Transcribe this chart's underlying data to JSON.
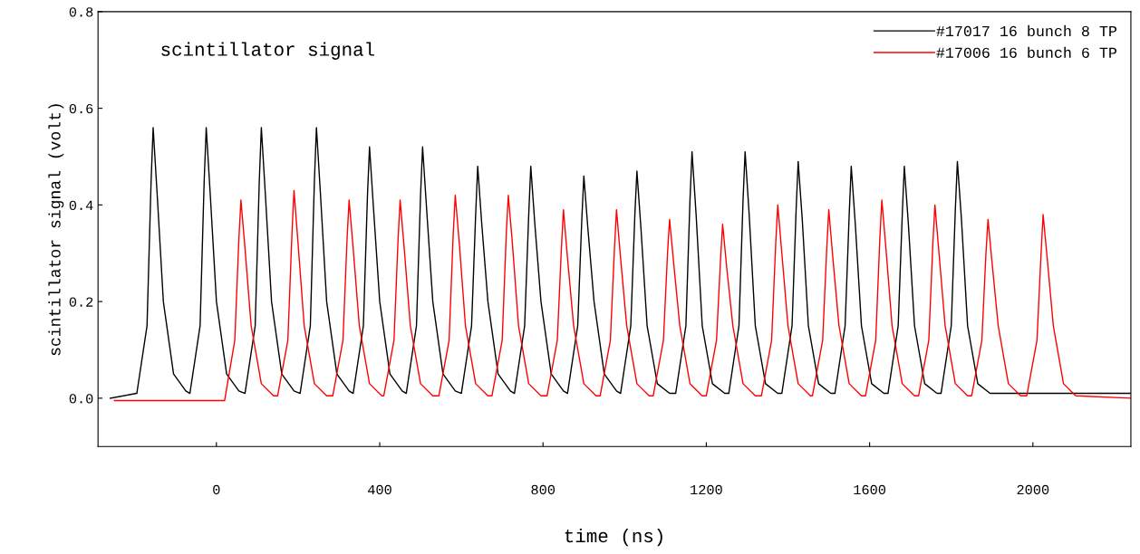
{
  "chart_data": {
    "type": "line",
    "xlabel": "time (ns)",
    "ylabel": "scintillator signal (volt)",
    "annotations": [
      "scintillator signal"
    ],
    "xlim": [
      -290,
      2240
    ],
    "ylim": [
      -0.1,
      0.8
    ],
    "xticks": [
      0,
      400,
      800,
      1200,
      1600,
      2000
    ],
    "yticks": [
      {
        "value": 0,
        "label": "0.0"
      },
      {
        "value": 0.2,
        "label": "0.2"
      },
      {
        "value": 0.4,
        "label": "0.4"
      },
      {
        "value": 0.6,
        "label": "0.6"
      },
      {
        "value": 0.8,
        "label": "0.8"
      }
    ],
    "grid": false,
    "legend": "top right",
    "marker": "none",
    "line_style": "solid",
    "series": [
      {
        "name": "#17017 16 bunch 8 TP",
        "color": "#000000",
        "x": [
          -260,
          -195,
          -170,
          -160,
          -155,
          -145,
          -130,
          -105,
          -75,
          -65,
          -40,
          -30,
          -25,
          -15,
          0,
          25,
          55,
          70,
          95,
          105,
          110,
          120,
          135,
          160,
          190,
          205,
          230,
          240,
          245,
          255,
          270,
          295,
          325,
          335,
          360,
          370,
          375,
          385,
          400,
          425,
          455,
          465,
          490,
          500,
          505,
          515,
          530,
          555,
          585,
          600,
          625,
          635,
          640,
          650,
          665,
          690,
          720,
          730,
          755,
          765,
          770,
          780,
          795,
          820,
          850,
          860,
          885,
          895,
          900,
          910,
          925,
          950,
          980,
          990,
          1015,
          1025,
          1030,
          1040,
          1055,
          1080,
          1110,
          1125,
          1150,
          1160,
          1165,
          1175,
          1190,
          1215,
          1245,
          1255,
          1280,
          1290,
          1295,
          1305,
          1320,
          1345,
          1375,
          1385,
          1410,
          1420,
          1425,
          1435,
          1450,
          1475,
          1505,
          1515,
          1540,
          1550,
          1555,
          1565,
          1580,
          1605,
          1635,
          1645,
          1670,
          1680,
          1685,
          1695,
          1710,
          1735,
          1765,
          1775,
          1800,
          1810,
          1815,
          1825,
          1840,
          1865,
          1895,
          2000,
          2240
        ],
        "values": [
          0.0,
          0.01,
          0.15,
          0.45,
          0.56,
          0.42,
          0.2,
          0.05,
          0.015,
          0.01,
          0.15,
          0.45,
          0.56,
          0.42,
          0.2,
          0.05,
          0.015,
          0.01,
          0.15,
          0.45,
          0.56,
          0.42,
          0.2,
          0.05,
          0.015,
          0.01,
          0.15,
          0.45,
          0.56,
          0.42,
          0.2,
          0.05,
          0.015,
          0.01,
          0.15,
          0.42,
          0.52,
          0.39,
          0.2,
          0.05,
          0.015,
          0.01,
          0.15,
          0.42,
          0.52,
          0.39,
          0.2,
          0.05,
          0.015,
          0.01,
          0.15,
          0.38,
          0.48,
          0.36,
          0.2,
          0.05,
          0.015,
          0.01,
          0.15,
          0.38,
          0.48,
          0.36,
          0.2,
          0.05,
          0.015,
          0.01,
          0.15,
          0.37,
          0.46,
          0.35,
          0.2,
          0.05,
          0.015,
          0.01,
          0.15,
          0.38,
          0.47,
          0.35,
          0.15,
          0.03,
          0.01,
          0.01,
          0.15,
          0.41,
          0.51,
          0.38,
          0.15,
          0.03,
          0.01,
          0.01,
          0.15,
          0.41,
          0.51,
          0.38,
          0.15,
          0.03,
          0.01,
          0.01,
          0.15,
          0.39,
          0.49,
          0.37,
          0.15,
          0.03,
          0.01,
          0.01,
          0.15,
          0.38,
          0.48,
          0.36,
          0.15,
          0.03,
          0.01,
          0.01,
          0.15,
          0.38,
          0.48,
          0.36,
          0.15,
          0.03,
          0.01,
          0.01,
          0.15,
          0.39,
          0.49,
          0.37,
          0.15,
          0.03,
          0.01,
          0.01,
          0.01
        ]
      },
      {
        "name": "#17006 16 bunch 6 TP",
        "color": "#ff0000",
        "x": [
          -250,
          20,
          45,
          55,
          60,
          70,
          85,
          110,
          140,
          150,
          175,
          185,
          190,
          200,
          215,
          240,
          270,
          285,
          310,
          320,
          325,
          335,
          350,
          375,
          405,
          410,
          435,
          445,
          450,
          460,
          475,
          500,
          530,
          545,
          570,
          580,
          585,
          595,
          610,
          635,
          665,
          675,
          700,
          710,
          715,
          725,
          740,
          765,
          795,
          810,
          835,
          845,
          850,
          860,
          875,
          900,
          930,
          940,
          965,
          975,
          980,
          990,
          1005,
          1030,
          1060,
          1070,
          1095,
          1105,
          1110,
          1120,
          1135,
          1160,
          1190,
          1200,
          1225,
          1235,
          1240,
          1250,
          1265,
          1290,
          1320,
          1335,
          1360,
          1370,
          1375,
          1385,
          1400,
          1425,
          1455,
          1460,
          1485,
          1495,
          1500,
          1510,
          1525,
          1550,
          1580,
          1590,
          1615,
          1625,
          1630,
          1640,
          1655,
          1680,
          1710,
          1720,
          1745,
          1755,
          1760,
          1770,
          1785,
          1810,
          1840,
          1850,
          1875,
          1885,
          1890,
          1900,
          1915,
          1940,
          1970,
          1985,
          2010,
          2020,
          2025,
          2035,
          2050,
          2075,
          2105,
          2240
        ],
        "values": [
          -0.005,
          -0.005,
          0.12,
          0.33,
          0.41,
          0.31,
          0.15,
          0.03,
          0.005,
          0.005,
          0.12,
          0.34,
          0.43,
          0.32,
          0.15,
          0.03,
          0.005,
          0.005,
          0.12,
          0.33,
          0.41,
          0.31,
          0.15,
          0.03,
          0.005,
          0.005,
          0.12,
          0.33,
          0.41,
          0.31,
          0.15,
          0.03,
          0.005,
          0.005,
          0.12,
          0.34,
          0.42,
          0.32,
          0.15,
          0.03,
          0.005,
          0.005,
          0.12,
          0.34,
          0.42,
          0.32,
          0.15,
          0.03,
          0.005,
          0.005,
          0.12,
          0.31,
          0.39,
          0.29,
          0.15,
          0.03,
          0.005,
          0.005,
          0.12,
          0.31,
          0.39,
          0.29,
          0.15,
          0.03,
          0.005,
          0.005,
          0.12,
          0.3,
          0.37,
          0.28,
          0.15,
          0.03,
          0.005,
          0.005,
          0.12,
          0.29,
          0.36,
          0.27,
          0.15,
          0.03,
          0.005,
          0.005,
          0.12,
          0.32,
          0.4,
          0.3,
          0.15,
          0.03,
          0.005,
          0.005,
          0.12,
          0.31,
          0.39,
          0.29,
          0.15,
          0.03,
          0.005,
          0.005,
          0.12,
          0.33,
          0.41,
          0.31,
          0.15,
          0.03,
          0.005,
          0.005,
          0.12,
          0.32,
          0.4,
          0.3,
          0.15,
          0.03,
          0.005,
          0.005,
          0.12,
          0.3,
          0.37,
          0.28,
          0.15,
          0.03,
          0.005,
          0.005,
          0.12,
          0.3,
          0.38,
          0.29,
          0.15,
          0.03,
          0.005,
          0.0
        ]
      }
    ]
  }
}
